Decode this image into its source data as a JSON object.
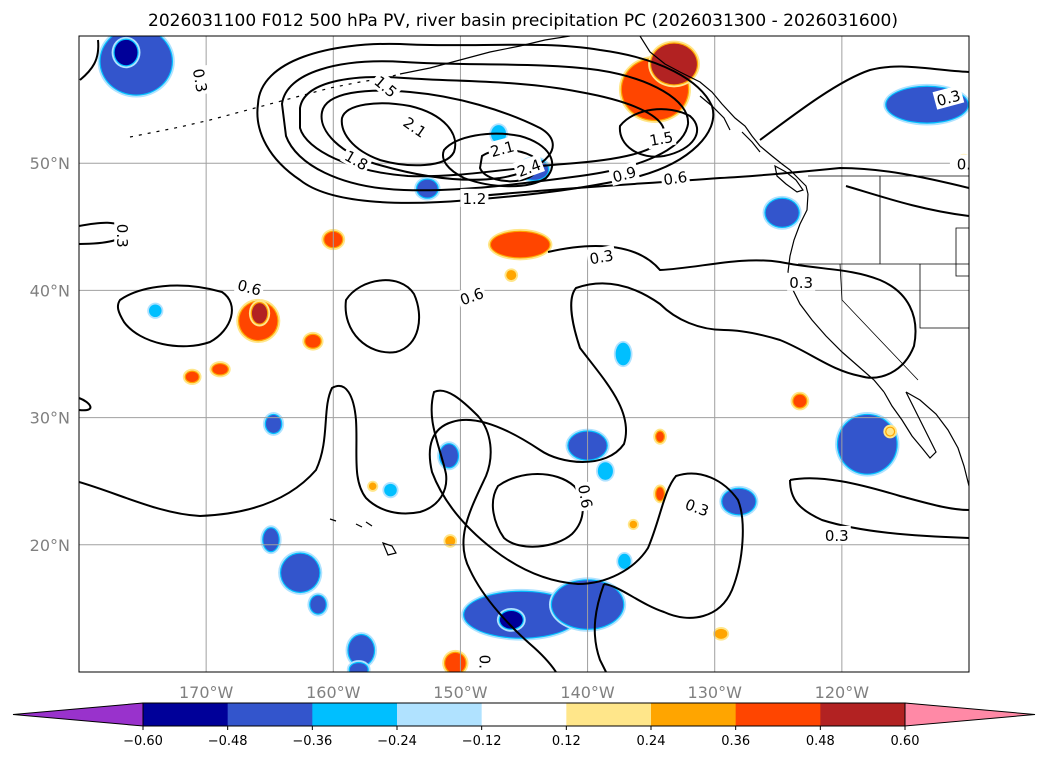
{
  "title": "2026031100 F012 500 hPa PV, river basin precipitation PC (2026031300 - 2026031600)",
  "map": {
    "projection": "PlateCarree",
    "lon_range": [
      -180,
      -110
    ],
    "lat_range": [
      10,
      60
    ],
    "gridlines": true,
    "lon_ticks": [
      {
        "lon": -170,
        "label": "170°W"
      },
      {
        "lon": -160,
        "label": "160°W"
      },
      {
        "lon": -150,
        "label": "150°W"
      },
      {
        "lon": -140,
        "label": "140°W"
      },
      {
        "lon": -130,
        "label": "130°W"
      },
      {
        "lon": -120,
        "label": "120°W"
      }
    ],
    "lat_ticks": [
      {
        "lat": 20,
        "label": "20°N"
      },
      {
        "lat": 30,
        "label": "30°N"
      },
      {
        "lat": 40,
        "label": "40°N"
      },
      {
        "lat": 50,
        "label": "50°N"
      }
    ]
  },
  "chart_data": {
    "type": "map",
    "fields": {
      "contours": "500 hPa PV",
      "shading": "river basin precipitation PC"
    },
    "pv_contour_levels": [
      0.3,
      0.6,
      0.9,
      1.2,
      1.5,
      1.8,
      2.1,
      2.4
    ],
    "pv_contour_labels": [
      {
        "text": "0.3",
        "lon": -170.5,
        "lat": 56.5,
        "rot": 80
      },
      {
        "text": "0.3",
        "lon": -176.6,
        "lat": 44.3,
        "rot": 90
      },
      {
        "text": "0.6",
        "lon": -166.6,
        "lat": 40.2,
        "rot": 15
      },
      {
        "text": "0.6",
        "lon": -149.1,
        "lat": 39.5,
        "rot": -20
      },
      {
        "text": "1.5",
        "lon": -155.9,
        "lat": 56.0,
        "rot": 40
      },
      {
        "text": "2.1",
        "lon": -153.6,
        "lat": 52.8,
        "rot": 35
      },
      {
        "text": "1.8",
        "lon": -158.2,
        "lat": 50.2,
        "rot": 30
      },
      {
        "text": "2.1",
        "lon": -146.7,
        "lat": 51.1,
        "rot": -15
      },
      {
        "text": "2.4",
        "lon": -144.6,
        "lat": 49.6,
        "rot": -20
      },
      {
        "text": "1.2",
        "lon": -148.9,
        "lat": 47.2,
        "rot": 0
      },
      {
        "text": "1.5",
        "lon": -134.2,
        "lat": 51.9,
        "rot": -10
      },
      {
        "text": "0.9",
        "lon": -137.1,
        "lat": 49.1,
        "rot": -15
      },
      {
        "text": "0.6",
        "lon": -133.1,
        "lat": 48.8,
        "rot": -8
      },
      {
        "text": "0.3",
        "lon": -111.6,
        "lat": 55.1,
        "rot": -15
      },
      {
        "text": "0.",
        "lon": -110.4,
        "lat": 49.9,
        "rot": 0
      },
      {
        "text": "0.3",
        "lon": -138.9,
        "lat": 42.6,
        "rot": -10
      },
      {
        "text": "0.3",
        "lon": -123.2,
        "lat": 40.6,
        "rot": 0
      },
      {
        "text": "0.6",
        "lon": -140.2,
        "lat": 23.8,
        "rot": 80
      },
      {
        "text": "0.3",
        "lon": -131.4,
        "lat": 22.9,
        "rot": 20
      },
      {
        "text": "0.3",
        "lon": -120.4,
        "lat": 20.7,
        "rot": 0
      },
      {
        "text": "0.",
        "lon": -148.1,
        "lat": 10.8,
        "rot": 90
      }
    ],
    "precip_areas": [
      {
        "lon": -175.5,
        "lat": 58.0,
        "rx": 2.8,
        "ry": 2.6,
        "v": -0.42
      },
      {
        "lon": -176.3,
        "lat": 58.7,
        "rx": 0.9,
        "ry": 1.0,
        "v": -0.55
      },
      {
        "lon": -152.6,
        "lat": 48.0,
        "rx": 0.8,
        "ry": 0.7,
        "v": -0.4
      },
      {
        "lon": -144.2,
        "lat": 49.5,
        "rx": 1.1,
        "ry": 0.8,
        "v": -0.4
      },
      {
        "lon": -147.0,
        "lat": 52.3,
        "rx": 0.5,
        "ry": 0.6,
        "v": -0.3
      },
      {
        "lon": -113.3,
        "lat": 54.6,
        "rx": 3.2,
        "ry": 1.4,
        "v": -0.4
      },
      {
        "lon": -124.7,
        "lat": 46.1,
        "rx": 1.3,
        "ry": 1.1,
        "v": -0.4
      },
      {
        "lon": -137.2,
        "lat": 35.0,
        "rx": 0.5,
        "ry": 0.8,
        "v": -0.3
      },
      {
        "lon": -174.0,
        "lat": 38.4,
        "rx": 0.4,
        "ry": 0.4,
        "v": -0.3
      },
      {
        "lon": -164.7,
        "lat": 29.5,
        "rx": 0.6,
        "ry": 0.7,
        "v": -0.4
      },
      {
        "lon": -150.9,
        "lat": 27.0,
        "rx": 0.7,
        "ry": 0.9,
        "v": -0.4
      },
      {
        "lon": -155.5,
        "lat": 24.3,
        "rx": 0.4,
        "ry": 0.4,
        "v": -0.3
      },
      {
        "lon": -140.0,
        "lat": 27.8,
        "rx": 1.5,
        "ry": 1.1,
        "v": -0.4
      },
      {
        "lon": -138.6,
        "lat": 25.8,
        "rx": 0.5,
        "ry": 0.6,
        "v": -0.3
      },
      {
        "lon": -128.1,
        "lat": 23.4,
        "rx": 1.3,
        "ry": 1.0,
        "v": -0.45
      },
      {
        "lon": -118.0,
        "lat": 27.9,
        "rx": 2.3,
        "ry": 2.3,
        "v": -0.42
      },
      {
        "lon": -164.9,
        "lat": 20.4,
        "rx": 0.6,
        "ry": 0.9,
        "v": -0.4
      },
      {
        "lon": -162.6,
        "lat": 17.8,
        "rx": 1.5,
        "ry": 1.5,
        "v": -0.45
      },
      {
        "lon": -161.2,
        "lat": 15.3,
        "rx": 0.6,
        "ry": 0.7,
        "v": -0.4
      },
      {
        "lon": -157.8,
        "lat": 11.7,
        "rx": 1.0,
        "ry": 1.2,
        "v": -0.4
      },
      {
        "lon": -158.0,
        "lat": 10.2,
        "rx": 0.7,
        "ry": 0.5,
        "v": -0.4
      },
      {
        "lon": -145.2,
        "lat": 14.5,
        "rx": 4.5,
        "ry": 1.8,
        "v": -0.42
      },
      {
        "lon": -140.0,
        "lat": 15.3,
        "rx": 2.8,
        "ry": 1.9,
        "v": -0.42
      },
      {
        "lon": -146.0,
        "lat": 14.1,
        "rx": 0.9,
        "ry": 0.7,
        "v": -0.55
      },
      {
        "lon": -137.1,
        "lat": 18.7,
        "rx": 0.4,
        "ry": 0.5,
        "v": -0.3
      },
      {
        "lon": -134.7,
        "lat": 55.8,
        "rx": 2.6,
        "ry": 2.4,
        "v": 0.42
      },
      {
        "lon": -133.2,
        "lat": 57.8,
        "rx": 1.8,
        "ry": 1.6,
        "v": 0.5
      },
      {
        "lon": -160.0,
        "lat": 44.0,
        "rx": 0.7,
        "ry": 0.6,
        "v": 0.4
      },
      {
        "lon": -145.3,
        "lat": 43.6,
        "rx": 2.3,
        "ry": 1.0,
        "v": 0.4
      },
      {
        "lon": -146.0,
        "lat": 41.2,
        "rx": 0.3,
        "ry": 0.3,
        "v": 0.3
      },
      {
        "lon": -165.9,
        "lat": 37.6,
        "rx": 1.5,
        "ry": 1.5,
        "v": 0.42
      },
      {
        "lon": -165.8,
        "lat": 38.2,
        "rx": 0.6,
        "ry": 0.8,
        "v": 0.5
      },
      {
        "lon": -161.6,
        "lat": 36.0,
        "rx": 0.6,
        "ry": 0.5,
        "v": 0.4
      },
      {
        "lon": -168.9,
        "lat": 33.8,
        "rx": 0.6,
        "ry": 0.4,
        "v": 0.4
      },
      {
        "lon": -171.1,
        "lat": 33.2,
        "rx": 0.5,
        "ry": 0.4,
        "v": 0.4
      },
      {
        "lon": -123.3,
        "lat": 31.3,
        "rx": 0.5,
        "ry": 0.5,
        "v": 0.4
      },
      {
        "lon": -134.3,
        "lat": 28.5,
        "rx": 0.3,
        "ry": 0.4,
        "v": 0.4
      },
      {
        "lon": -134.3,
        "lat": 24.0,
        "rx": 0.3,
        "ry": 0.5,
        "v": 0.4
      },
      {
        "lon": -136.4,
        "lat": 21.6,
        "rx": 0.2,
        "ry": 0.2,
        "v": 0.3
      },
      {
        "lon": -150.8,
        "lat": 20.3,
        "rx": 0.3,
        "ry": 0.3,
        "v": 0.3
      },
      {
        "lon": -156.9,
        "lat": 24.6,
        "rx": 0.2,
        "ry": 0.2,
        "v": 0.3
      },
      {
        "lon": -129.5,
        "lat": 13.0,
        "rx": 0.4,
        "ry": 0.3,
        "v": 0.3
      },
      {
        "lon": -116.2,
        "lat": 28.9,
        "rx": 0.3,
        "ry": 0.3,
        "v": 0.2
      },
      {
        "lon": -110.4,
        "lat": 50.1,
        "rx": 0.6,
        "ry": 0.4,
        "v": 0.3
      },
      {
        "lon": -150.4,
        "lat": 10.7,
        "rx": 0.8,
        "ry": 0.8,
        "v": 0.45
      }
    ]
  },
  "colorbar": {
    "boundaries": [
      -0.6,
      -0.48,
      -0.36,
      -0.24,
      -0.12,
      0.12,
      0.24,
      0.36,
      0.48,
      0.6
    ],
    "tick_labels": [
      "−0.60",
      "−0.48",
      "−0.36",
      "−0.24",
      "−0.12",
      "0.12",
      "0.24",
      "0.36",
      "0.48",
      "0.60"
    ],
    "colors": [
      "#000099",
      "#3355cc",
      "#00bfff",
      "#b0e2ff",
      "#ffffff",
      "#ffe68a",
      "#ffa500",
      "#ff4500",
      "#b22222"
    ],
    "under_color": "#9932cc",
    "over_color": "#ff89a6",
    "extend": "both"
  }
}
